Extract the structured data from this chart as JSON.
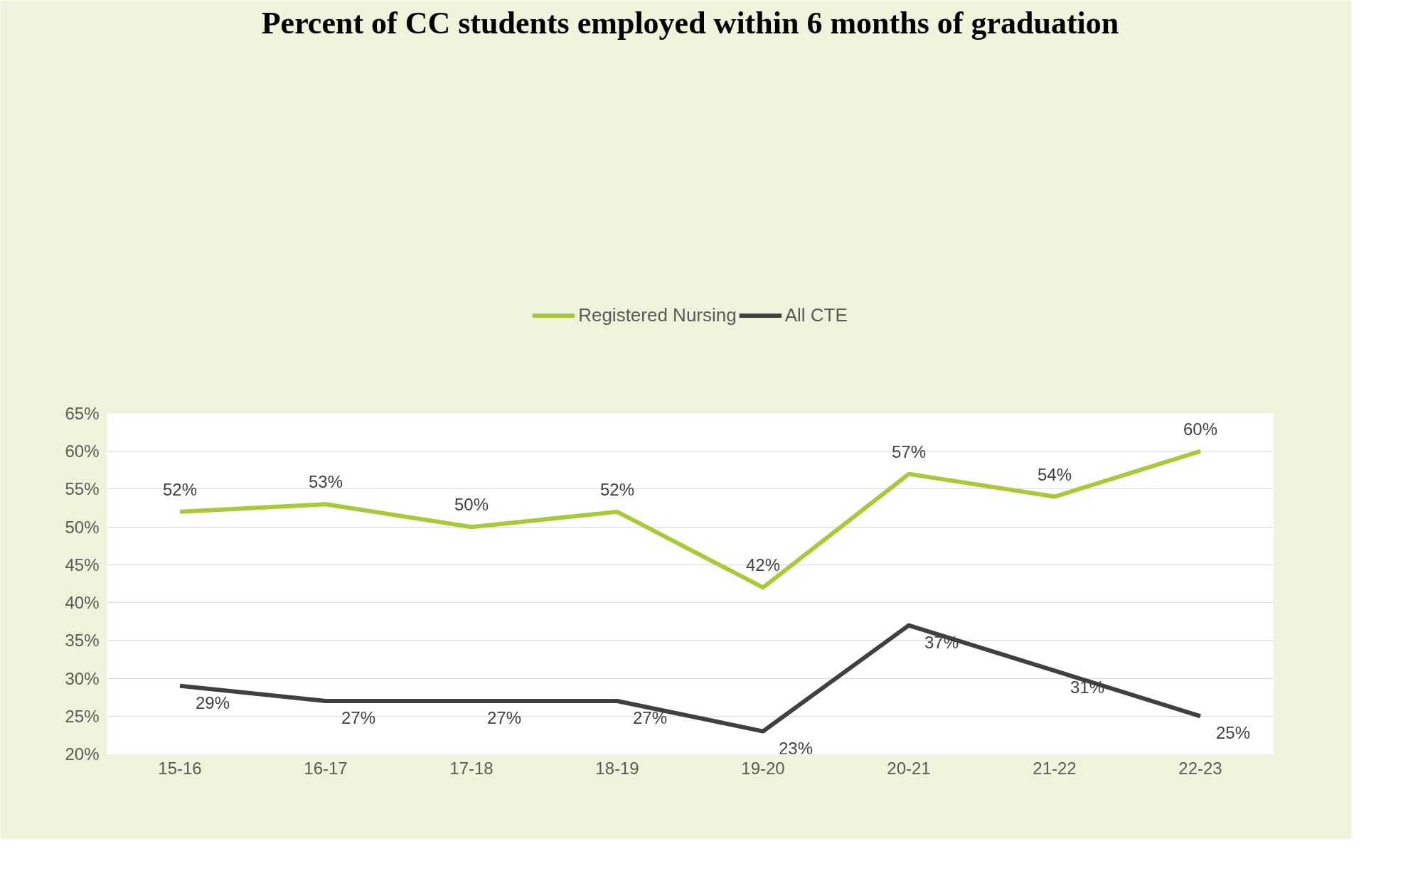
{
  "chart_data": {
    "type": "line",
    "title": "Percent of CC students employed within 6 months of graduation",
    "categories": [
      "15-16",
      "16-17",
      "17-18",
      "18-19",
      "19-20",
      "20-21",
      "21-22",
      "22-23"
    ],
    "series": [
      {
        "name": "Registered Nursing",
        "color": "#a9c93a",
        "values": [
          52,
          53,
          50,
          52,
          42,
          57,
          54,
          60
        ],
        "value_labels": [
          "52%",
          "53%",
          "50%",
          "52%",
          "42%",
          "57%",
          "54%",
          "60%"
        ]
      },
      {
        "name": "All CTE",
        "color": "#404040",
        "values": [
          29,
          27,
          27,
          27,
          23,
          37,
          31,
          25
        ],
        "value_labels": [
          "29%",
          "27%",
          "27%",
          "27%",
          "23%",
          "37%",
          "31%",
          "25%"
        ]
      }
    ],
    "ylim": [
      20,
      65
    ],
    "yticks": [
      {
        "value": 20,
        "label": "20%"
      },
      {
        "value": 25,
        "label": "25%"
      },
      {
        "value": 30,
        "label": "30%"
      },
      {
        "value": 35,
        "label": "35%"
      },
      {
        "value": 40,
        "label": "40%"
      },
      {
        "value": 45,
        "label": "45%"
      },
      {
        "value": 50,
        "label": "50%"
      },
      {
        "value": 55,
        "label": "55%"
      },
      {
        "value": 60,
        "label": "60%"
      },
      {
        "value": 65,
        "label": "65%"
      }
    ],
    "grid": "y",
    "legend": "top",
    "marker": "none",
    "line_style": "solid"
  }
}
